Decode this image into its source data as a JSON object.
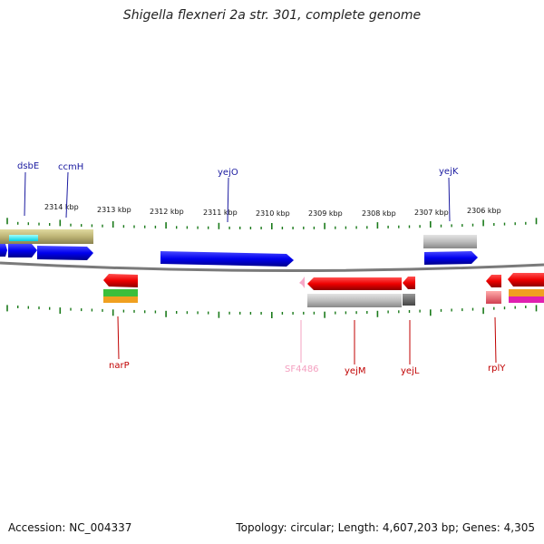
{
  "title": "Shigella flexneri 2a str. 301, complete genome",
  "footer": {
    "accession": "Accession: NC_004337",
    "summary": "Topology: circular; Length: 4,607,203 bp; Genes: 4,305"
  },
  "scale": {
    "ticks": [
      "2314 kbp",
      "2313 kbp",
      "2312 kbp",
      "2311 kbp",
      "2310 kbp",
      "2309 kbp",
      "2308 kbp",
      "2307 kbp",
      "2306 kbp"
    ]
  },
  "gene_labels": [
    {
      "name": "dsbE",
      "color": "#1a1aa0"
    },
    {
      "name": "ccmH",
      "color": "#1a1aa0"
    },
    {
      "name": "yejO",
      "color": "#1a1aa0"
    },
    {
      "name": "yejK",
      "color": "#1a1aa0"
    },
    {
      "name": "narP",
      "color": "#c00000"
    },
    {
      "name": "SF4486",
      "color": "#f4a0c0"
    },
    {
      "name": "yejM",
      "color": "#c00000"
    },
    {
      "name": "yejL",
      "color": "#c00000"
    },
    {
      "name": "rplY",
      "color": "#c00000"
    }
  ],
  "colors": {
    "forward": "#0000ee",
    "reverse": "#ee0000",
    "backbone": "#808080",
    "tick": "#1a7a1a"
  }
}
